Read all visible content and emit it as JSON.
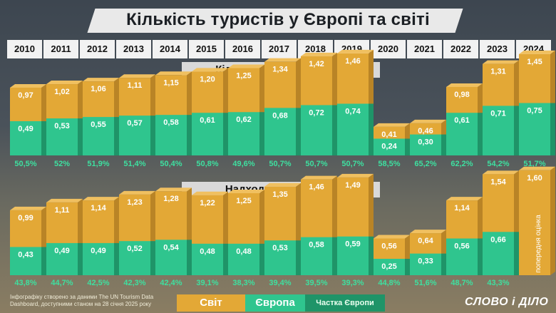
{
  "title": "Кількість туристів у Європі та світі",
  "watermark": "СЛОВО і ДІЛО",
  "years": [
    "2010",
    "2011",
    "2012",
    "2013",
    "2014",
    "2015",
    "2016",
    "2017",
    "2018",
    "2019",
    "2020",
    "2021",
    "2022",
    "2023",
    "2024"
  ],
  "chart_data": [
    {
      "type": "bar",
      "title": "Кількість туристів, млрд",
      "categories": [
        "2010",
        "2011",
        "2012",
        "2013",
        "2014",
        "2015",
        "2016",
        "2017",
        "2018",
        "2019",
        "2020",
        "2021",
        "2022",
        "2023",
        "2024"
      ],
      "series": [
        {
          "name": "Світ",
          "values": [
            0.97,
            1.02,
            1.06,
            1.11,
            1.15,
            1.2,
            1.25,
            1.34,
            1.42,
            1.46,
            0.41,
            0.46,
            0.98,
            1.31,
            1.45
          ],
          "labels": [
            "0,97",
            "1,02",
            "1,06",
            "1,11",
            "1,15",
            "1,20",
            "1,25",
            "1,34",
            "1,42",
            "1,46",
            "0,41",
            "0,46",
            "0,98",
            "1,31",
            "1,45"
          ]
        },
        {
          "name": "Європа",
          "values": [
            0.49,
            0.53,
            0.55,
            0.57,
            0.58,
            0.61,
            0.62,
            0.68,
            0.72,
            0.74,
            0.24,
            0.3,
            0.61,
            0.71,
            0.75
          ],
          "labels": [
            "0,49",
            "0,53",
            "0,55",
            "0,57",
            "0,58",
            "0,61",
            "0,62",
            "0,68",
            "0,72",
            "0,74",
            "0,24",
            "0,30",
            "0,61",
            "0,71",
            "0,75"
          ]
        }
      ],
      "share_name": "Частка Європи",
      "share": [
        "50,5%",
        "52%",
        "51,9%",
        "51,4%",
        "50,4%",
        "50,8%",
        "49,6%",
        "50,7%",
        "50,7%",
        "50,7%",
        "58,5%",
        "65,2%",
        "62,2%",
        "54,2%",
        "51,7%"
      ]
    },
    {
      "type": "bar",
      "title": "Надходження, $ трлн",
      "categories": [
        "2010",
        "2011",
        "2012",
        "2013",
        "2014",
        "2015",
        "2016",
        "2017",
        "2018",
        "2019",
        "2020",
        "2021",
        "2022",
        "2023",
        "2024"
      ],
      "series": [
        {
          "name": "Світ",
          "values": [
            0.99,
            1.11,
            1.14,
            1.23,
            1.28,
            1.22,
            1.25,
            1.35,
            1.46,
            1.49,
            0.56,
            0.64,
            1.14,
            1.54,
            1.6
          ],
          "labels": [
            "0,99",
            "1,11",
            "1,14",
            "1,23",
            "1,28",
            "1,22",
            "1,25",
            "1,35",
            "1,46",
            "1,49",
            "0,56",
            "0,64",
            "1,14",
            "1,54",
            "1,60"
          ]
        },
        {
          "name": "Європа",
          "values": [
            0.43,
            0.49,
            0.49,
            0.52,
            0.54,
            0.48,
            0.48,
            0.53,
            0.58,
            0.59,
            0.25,
            0.33,
            0.56,
            0.66,
            null
          ],
          "labels": [
            "0,43",
            "0,49",
            "0,49",
            "0,52",
            "0,54",
            "0,48",
            "0,48",
            "0,53",
            "0,58",
            "0,59",
            "0,25",
            "0,33",
            "0,56",
            "0,66",
            ""
          ]
        }
      ],
      "share_name": "Частка Європи",
      "share": [
        "43,8%",
        "44,7%",
        "42,5%",
        "42,3%",
        "42,4%",
        "39,1%",
        "38,3%",
        "39,4%",
        "39,5%",
        "39,3%",
        "44,8%",
        "51,6%",
        "48,7%",
        "43,3%",
        ""
      ],
      "annotation": "попередня оцінка"
    }
  ],
  "legend": {
    "world": "Світ",
    "europe": "Європа",
    "share": "Частка Європи"
  },
  "footer": "Інфографіку створено за даними The UN Tourism Data Dashboard, доступними станом на 28 січня 2025 року",
  "logo": "СЛОВО і ДІЛО",
  "colors": {
    "world": "#e3a836",
    "world_side": "#b98426",
    "europe": "#2fc58e",
    "europe_side": "#1f9468",
    "share_text": "#3ee0a0"
  }
}
